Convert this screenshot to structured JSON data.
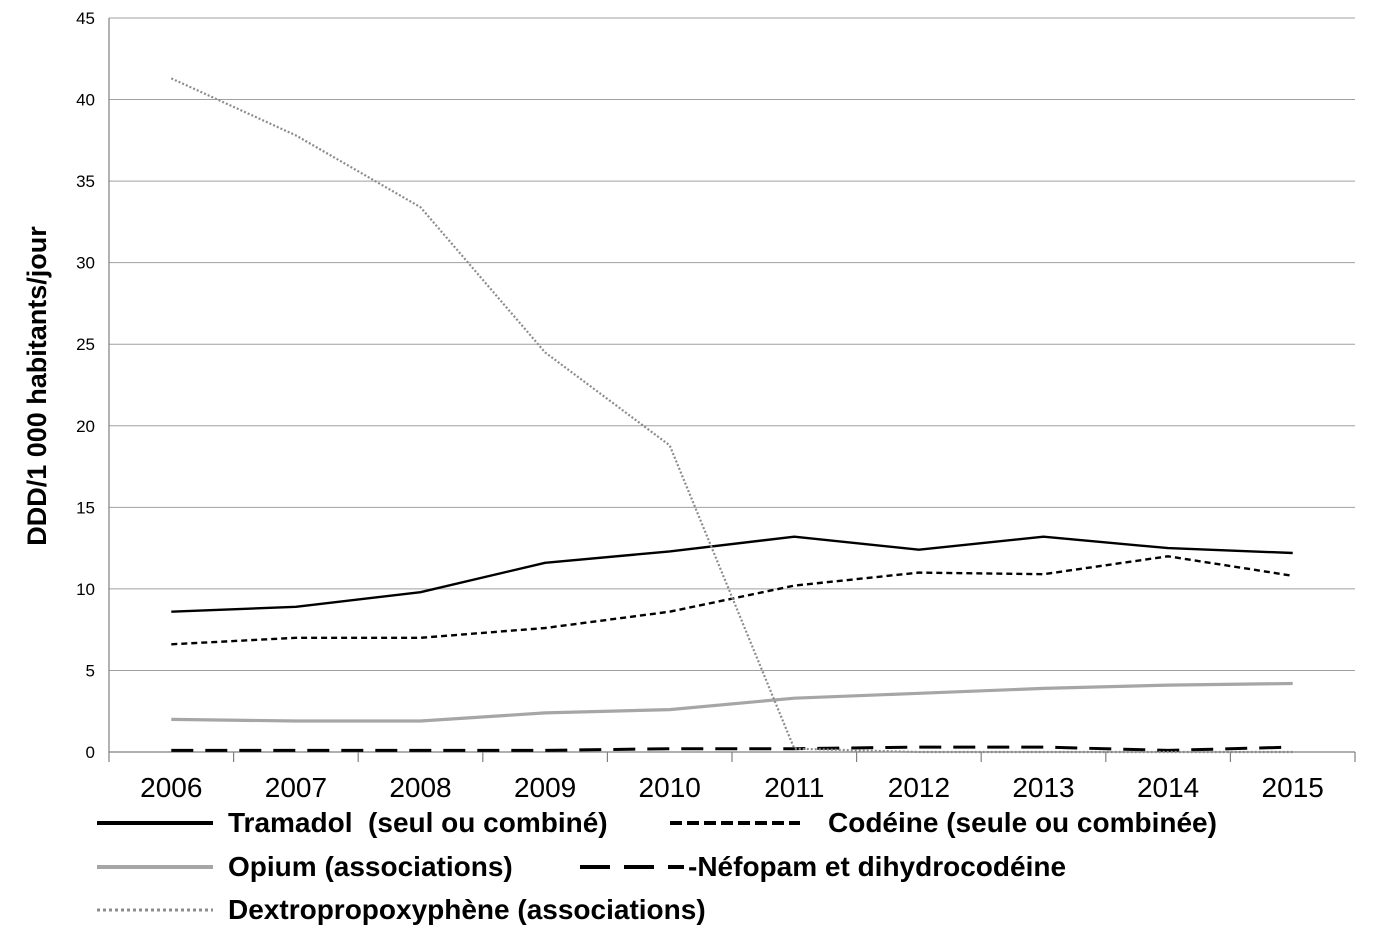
{
  "chart_data": {
    "type": "line",
    "title": "",
    "xlabel": "",
    "ylabel": "DDD/1 000 habitants/jour",
    "categories": [
      "2006",
      "2007",
      "2008",
      "2009",
      "2010",
      "2011",
      "2012",
      "2013",
      "2014",
      "2015"
    ],
    "y_ticks": [
      "0",
      "5",
      "10",
      "15",
      "20",
      "25",
      "30",
      "35",
      "40",
      "45"
    ],
    "ylim": [
      0,
      45
    ],
    "grid": true,
    "legend_position": "bottom",
    "series": [
      {
        "name": "Tramadol  (seul ou combiné)",
        "values": [
          8.6,
          8.9,
          9.8,
          11.6,
          12.3,
          13.2,
          12.4,
          13.2,
          12.5,
          12.2
        ],
        "color": "#000000",
        "style": "solid"
      },
      {
        "name": "Codéine (seule ou combinée)",
        "values": [
          6.6,
          7.0,
          7.0,
          7.6,
          8.6,
          10.2,
          11.0,
          10.9,
          12.0,
          10.8
        ],
        "color": "#000000",
        "style": "short-dash"
      },
      {
        "name": "Opium (associations)",
        "values": [
          2.0,
          1.9,
          1.9,
          2.4,
          2.6,
          3.3,
          3.6,
          3.9,
          4.1,
          4.2
        ],
        "color": "#a6a6a6",
        "style": "solid"
      },
      {
        "name": "-Néfopam et dihydrocodéine",
        "values": [
          0.1,
          0.1,
          0.1,
          0.1,
          0.2,
          0.2,
          0.3,
          0.3,
          0.1,
          0.3
        ],
        "color": "#000000",
        "style": "long-dash"
      },
      {
        "name": "Dextropropoxyphène (associations)",
        "values": [
          41.3,
          37.8,
          33.4,
          24.5,
          18.8,
          0.2,
          0.0,
          0.0,
          0.0,
          0.0
        ],
        "color": "#8c8c8c",
        "style": "dotted"
      }
    ]
  }
}
